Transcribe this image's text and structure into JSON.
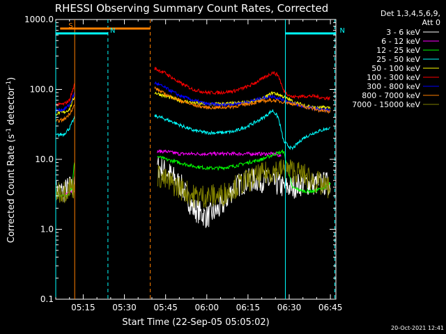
{
  "chart_data": {
    "type": "line",
    "title": "RHESSI Observing Summary Count Rates, Corrected",
    "xlabel": "Start Time (22-Sep-05 05:05:02)",
    "ylabel_main": "Corrected Count Rate (s",
    "ylabel_sup1": "-1",
    "ylabel_mid": " detector",
    "ylabel_sup2": "-1",
    "ylabel_end": ")",
    "ylog": true,
    "ylim": [
      0.1,
      1000
    ],
    "xlim_minutes": [
      0,
      102
    ],
    "x_ticks": [
      {
        "t": 10,
        "label": "05:15"
      },
      {
        "t": 25,
        "label": "05:30"
      },
      {
        "t": 40,
        "label": "05:45"
      },
      {
        "t": 55,
        "label": "06:00"
      },
      {
        "t": 70,
        "label": "06:15"
      },
      {
        "t": 85,
        "label": "06:30"
      },
      {
        "t": 100,
        "label": "06:45"
      }
    ],
    "y_ticks": [
      {
        "v": 1000,
        "label": "1000.0"
      },
      {
        "v": 100,
        "label": "100.0"
      },
      {
        "v": 10,
        "label": "10.0"
      },
      {
        "v": 1,
        "label": "1.0"
      },
      {
        "v": 0.1,
        "label": "0.1"
      }
    ],
    "legend": {
      "header1": "Det 1,3,4,5,6,9,",
      "header2": "Att 0",
      "placement": "top-right"
    },
    "timestamp": "20-Oct-2021 12:41",
    "flags": [
      {
        "label": "S",
        "color": "#ff8000",
        "t0": 1.6,
        "t1": 34.4,
        "level": 1
      },
      {
        "label": "N",
        "color": "#00ffff",
        "t0": 0,
        "t1": 19,
        "level": 2
      },
      {
        "label": "N",
        "color": "#00ffff",
        "t0": 83.6,
        "t1": 102,
        "level": 2
      }
    ],
    "vlines": [
      {
        "t": 0,
        "color": "#00ffff",
        "dashed": false
      },
      {
        "t": 6.9,
        "color": "#ff8000",
        "dashed": false
      },
      {
        "t": 19,
        "color": "#00ffff",
        "dashed": true
      },
      {
        "t": 34.4,
        "color": "#ff8000",
        "dashed": true
      },
      {
        "t": 83.6,
        "color": "#00ffff",
        "dashed": false
      },
      {
        "t": 101.6,
        "color": "#00ffff",
        "dashed": true
      }
    ],
    "series": [
      {
        "name": "3 - 6 keV",
        "color": "#ffffff",
        "seg1": [
          [
            0,
            3.5
          ],
          [
            3,
            3.5
          ],
          [
            5,
            4
          ],
          [
            6.9,
            4
          ]
        ],
        "seg2": [
          [
            37,
            8
          ],
          [
            42,
            6
          ],
          [
            46,
            4
          ],
          [
            50,
            2
          ],
          [
            55,
            1.5
          ],
          [
            60,
            2
          ],
          [
            65,
            4
          ],
          [
            70,
            5
          ],
          [
            75,
            5
          ],
          [
            80,
            4.5
          ],
          [
            83,
            4
          ],
          [
            86,
            4
          ],
          [
            90,
            4.5
          ],
          [
            94,
            4.5
          ],
          [
            98,
            4.5
          ],
          [
            100,
            4.5
          ]
        ]
      },
      {
        "name": "6 - 12 keV",
        "color": "#ff00ff",
        "seg1": [
          [
            0,
            3
          ],
          [
            3,
            3
          ],
          [
            5,
            3.5
          ],
          [
            6.9,
            3.5
          ]
        ],
        "seg2": [
          [
            37,
            13
          ],
          [
            40,
            13
          ],
          [
            45,
            12
          ],
          [
            50,
            12
          ],
          [
            55,
            12
          ],
          [
            60,
            12
          ],
          [
            65,
            12
          ],
          [
            70,
            12
          ],
          [
            75,
            12
          ],
          [
            80,
            12
          ],
          [
            82,
            11
          ]
        ]
      },
      {
        "name": "12 - 25 keV",
        "color": "#00ff00",
        "seg1": [
          [
            0,
            3
          ],
          [
            2,
            3
          ],
          [
            4,
            3
          ],
          [
            6,
            4
          ],
          [
            6.9,
            10
          ]
        ],
        "seg2": [
          [
            37,
            11
          ],
          [
            40,
            10
          ],
          [
            45,
            9
          ],
          [
            50,
            8
          ],
          [
            55,
            7.5
          ],
          [
            60,
            7.5
          ],
          [
            65,
            8
          ],
          [
            70,
            9
          ],
          [
            75,
            10
          ],
          [
            80,
            12
          ],
          [
            83,
            13
          ],
          [
            86,
            4
          ],
          [
            90,
            3.5
          ],
          [
            94,
            3.5
          ],
          [
            98,
            4
          ],
          [
            100,
            4.5
          ]
        ]
      },
      {
        "name": "25 - 50 keV",
        "color": "#00ffff",
        "seg1": [
          [
            0,
            22
          ],
          [
            3,
            23
          ],
          [
            5,
            28
          ],
          [
            6.9,
            40
          ]
        ],
        "seg2": [
          [
            36,
            42
          ],
          [
            38,
            40
          ],
          [
            42,
            35
          ],
          [
            46,
            30
          ],
          [
            50,
            26
          ],
          [
            55,
            24
          ],
          [
            60,
            24
          ],
          [
            65,
            25
          ],
          [
            70,
            30
          ],
          [
            75,
            38
          ],
          [
            79,
            50
          ],
          [
            81,
            40
          ],
          [
            83,
            18
          ],
          [
            86,
            14
          ],
          [
            90,
            20
          ],
          [
            94,
            24
          ],
          [
            98,
            27
          ],
          [
            100,
            28
          ]
        ]
      },
      {
        "name": "50 - 100 keV",
        "color": "#ffff00",
        "seg1": [
          [
            0,
            45
          ],
          [
            3,
            47
          ],
          [
            5,
            52
          ],
          [
            6.9,
            80
          ]
        ],
        "seg2": [
          [
            36,
            90
          ],
          [
            40,
            80
          ],
          [
            45,
            70
          ],
          [
            50,
            64
          ],
          [
            55,
            62
          ],
          [
            60,
            62
          ],
          [
            65,
            63
          ],
          [
            70,
            66
          ],
          [
            75,
            72
          ],
          [
            79,
            90
          ],
          [
            81,
            85
          ],
          [
            84,
            75
          ],
          [
            87,
            65
          ],
          [
            90,
            60
          ],
          [
            94,
            55
          ],
          [
            98,
            55
          ],
          [
            100,
            55
          ]
        ]
      },
      {
        "name": "100 - 300 keV",
        "color": "#ff0000",
        "seg1": [
          [
            0,
            60
          ],
          [
            3,
            62
          ],
          [
            5,
            70
          ],
          [
            6.9,
            120
          ]
        ],
        "seg2": [
          [
            36,
            200
          ],
          [
            40,
            170
          ],
          [
            45,
            125
          ],
          [
            50,
            100
          ],
          [
            55,
            90
          ],
          [
            60,
            90
          ],
          [
            65,
            95
          ],
          [
            70,
            110
          ],
          [
            75,
            140
          ],
          [
            79,
            175
          ],
          [
            81,
            160
          ],
          [
            83,
            95
          ],
          [
            86,
            78
          ],
          [
            90,
            80
          ],
          [
            94,
            80
          ],
          [
            98,
            75
          ],
          [
            100,
            75
          ]
        ]
      },
      {
        "name": "300 - 800 keV",
        "color": "#0000ff",
        "seg1": [
          [
            0,
            50
          ],
          [
            3,
            52
          ],
          [
            5,
            60
          ],
          [
            6.9,
            90
          ]
        ],
        "seg2": [
          [
            36,
            125
          ],
          [
            40,
            105
          ],
          [
            45,
            82
          ],
          [
            50,
            70
          ],
          [
            55,
            62
          ],
          [
            60,
            60
          ],
          [
            65,
            62
          ],
          [
            70,
            66
          ],
          [
            75,
            75
          ],
          [
            79,
            80
          ],
          [
            81,
            75
          ],
          [
            84,
            68
          ],
          [
            88,
            60
          ],
          [
            92,
            55
          ],
          [
            96,
            52
          ],
          [
            100,
            50
          ]
        ]
      },
      {
        "name": "800 - 7000 keV",
        "color": "#ff8000",
        "seg1": [
          [
            0,
            35
          ],
          [
            3,
            37
          ],
          [
            5,
            45
          ],
          [
            6.9,
            60
          ]
        ],
        "seg2": [
          [
            36,
            105
          ],
          [
            40,
            85
          ],
          [
            45,
            70
          ],
          [
            50,
            60
          ],
          [
            55,
            55
          ],
          [
            60,
            55
          ],
          [
            65,
            57
          ],
          [
            70,
            62
          ],
          [
            75,
            68
          ],
          [
            79,
            70
          ],
          [
            81,
            68
          ],
          [
            84,
            65
          ],
          [
            88,
            60
          ],
          [
            92,
            55
          ],
          [
            96,
            50
          ],
          [
            100,
            48
          ]
        ]
      },
      {
        "name": "7000 - 15000 keV",
        "color": "#808000",
        "seg1": [
          [
            0,
            3.5
          ],
          [
            3,
            3.5
          ],
          [
            5,
            4
          ],
          [
            6.9,
            4
          ]
        ],
        "seg2": [
          [
            37,
            6
          ],
          [
            40,
            5
          ],
          [
            45,
            4
          ],
          [
            50,
            3
          ],
          [
            55,
            3
          ],
          [
            60,
            3
          ],
          [
            65,
            4
          ],
          [
            70,
            5
          ],
          [
            75,
            6
          ],
          [
            80,
            7
          ],
          [
            83,
            7
          ],
          [
            86,
            7
          ],
          [
            90,
            6
          ],
          [
            94,
            5
          ],
          [
            98,
            4
          ],
          [
            100,
            4
          ]
        ]
      }
    ]
  }
}
